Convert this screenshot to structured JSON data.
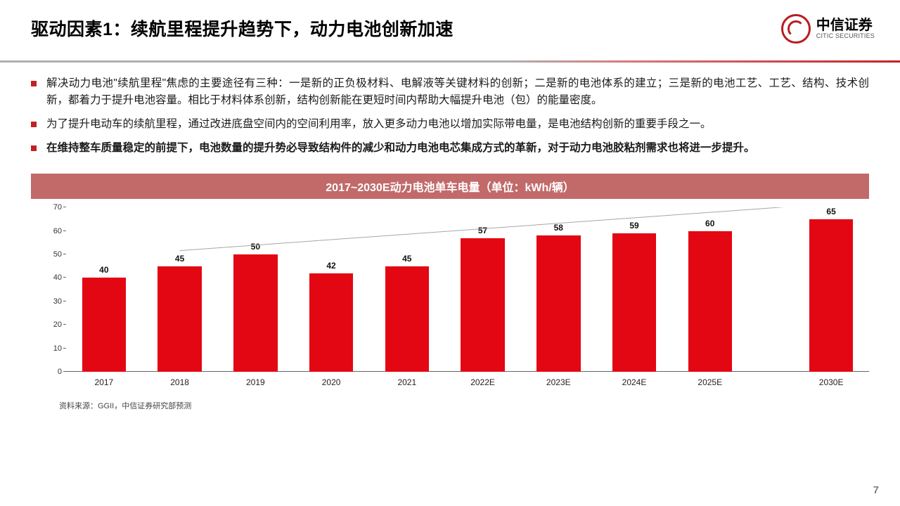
{
  "header": {
    "title": "驱动因素1：续航里程提升趋势下，动力电池创新加速",
    "logo_cn": "中信证券",
    "logo_en": "CITIC SECURITIES"
  },
  "bullets": [
    {
      "text": "解决动力电池\"续航里程\"焦虑的主要途径有三种：一是新的正负极材料、电解液等关键材料的创新；二是新的电池体系的建立；三是新的电池工艺、工艺、结构、技术创新，都着力于提升电池容量。相比于材料体系创新，结构创新能在更短时间内帮助大幅提升电池（包）的能量密度。",
      "bold": false
    },
    {
      "text": "为了提升电动车的续航里程，通过改进底盘空间内的空间利用率，放入更多动力电池以增加实际带电量，是电池结构创新的重要手段之一。",
      "bold": false
    },
    {
      "text": "在维持整车质量稳定的前提下，电池数量的提升势必导致结构件的减少和动力电池电芯集成方式的革新，对于动力电池胶粘剂需求也将进一步提升。",
      "bold": true
    }
  ],
  "chart": {
    "type": "bar",
    "title": "2017~2030E动力电池单车电量（单位：kWh/辆）",
    "categories": [
      "2017",
      "2018",
      "2019",
      "2020",
      "2021",
      "2022E",
      "2023E",
      "2024E",
      "2025E",
      "2030E"
    ],
    "values": [
      40,
      45,
      50,
      42,
      45,
      57,
      58,
      59,
      60,
      65
    ],
    "bar_color": "#e30613",
    "title_bg": "#c26a6a",
    "title_color": "#ffffff",
    "title_fontsize": 16,
    "ylim": [
      0,
      70
    ],
    "ytick_step": 10,
    "yticks": [
      0,
      10,
      20,
      30,
      40,
      50,
      60,
      70
    ],
    "label_fontsize": 12,
    "value_fontsize": 12,
    "axis_color": "#666666",
    "background_color": "#ffffff",
    "bar_width_ratio": 0.58,
    "gap_after_index": 8,
    "trend_arrow": {
      "color": "#a6a6a6",
      "width": 1,
      "from_index": 1,
      "to_index": 9
    }
  },
  "source": "资料来源：GGII，中信证券研究部预测",
  "page_number": "7"
}
